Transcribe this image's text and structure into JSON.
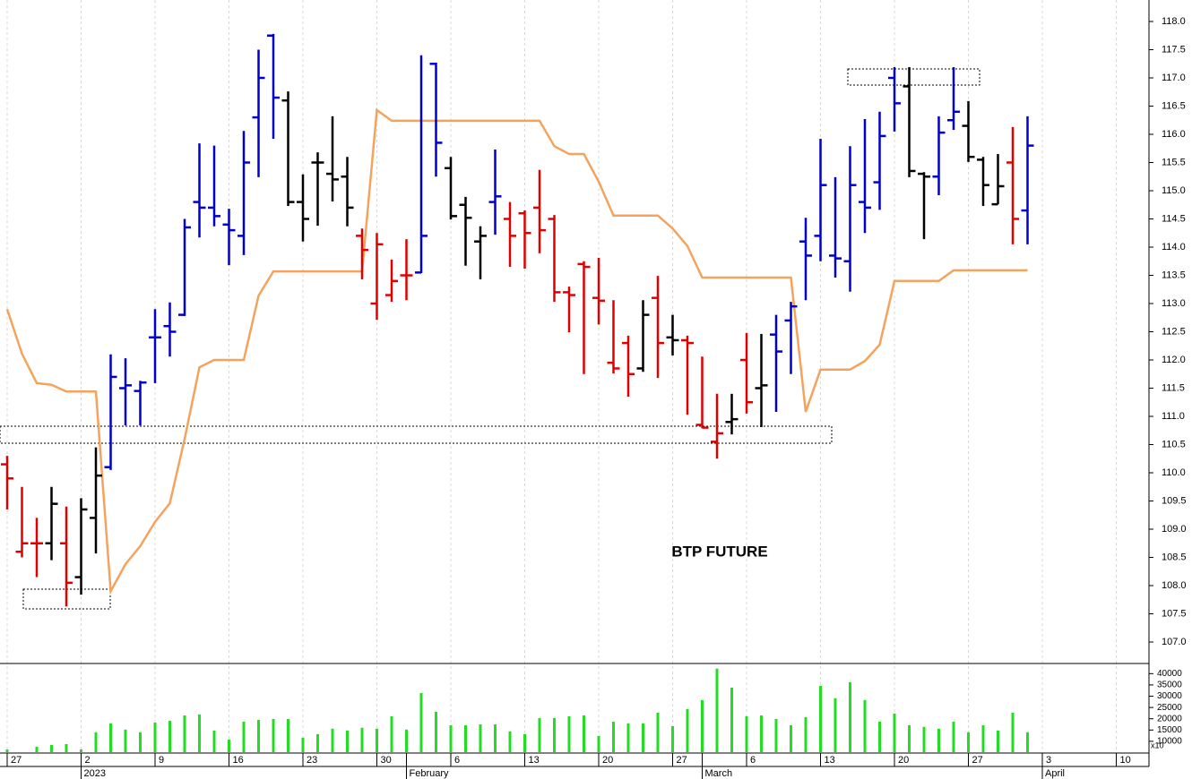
{
  "chart_data": {
    "type": "ohlc",
    "title": "BTP FUTURE",
    "categories": [
      "27",
      null,
      null,
      null,
      null,
      "2",
      null,
      null,
      null,
      null,
      "9",
      null,
      null,
      null,
      null,
      "16",
      null,
      null,
      null,
      null,
      "23",
      null,
      null,
      null,
      null,
      "30",
      null,
      null,
      null,
      null,
      "6",
      null,
      null,
      null,
      null,
      "13",
      null,
      null,
      null,
      null,
      "20",
      null,
      null,
      null,
      null,
      "27",
      null,
      null,
      null,
      null,
      "6",
      null,
      null,
      null,
      null,
      "13",
      null,
      null,
      null,
      null,
      "20",
      null,
      null,
      null,
      null,
      "27",
      null,
      null,
      null,
      null,
      "3",
      null,
      null,
      null,
      null,
      "10",
      null
    ],
    "month_categories": [
      null,
      null,
      null,
      null,
      null,
      "2023",
      null,
      null,
      null,
      null,
      null,
      null,
      null,
      null,
      null,
      null,
      null,
      null,
      null,
      null,
      null,
      null,
      null,
      null,
      null,
      null,
      null,
      "February",
      null,
      null,
      null,
      null,
      null,
      null,
      null,
      null,
      null,
      null,
      null,
      null,
      null,
      null,
      null,
      null,
      null,
      null,
      null,
      "March",
      null,
      null,
      null,
      null,
      null,
      null,
      null,
      null,
      null,
      null,
      null,
      null,
      null,
      null,
      null,
      null,
      null,
      null,
      null,
      null,
      null,
      null,
      "April",
      null,
      null,
      null,
      null,
      null,
      null
    ],
    "open": [
      110.15,
      108.6,
      108.75,
      108.75,
      108.75,
      108.15,
      109.2,
      110.1,
      111.5,
      111.45,
      112.4,
      112.6,
      112.8,
      114.8,
      114.7,
      114.4,
      114.2,
      116.3,
      117.75,
      116.6,
      114.8,
      115.5,
      115.3,
      115.25,
      114.2,
      113.0,
      113.15,
      113.5,
      113.55,
      117.25,
      115.4,
      114.75,
      114.1,
      114.8,
      114.5,
      114.6,
      114.7,
      114.5,
      113.2,
      113.7,
      113.1,
      111.95,
      112.3,
      111.85,
      113.1,
      112.4,
      112.35,
      110.85,
      110.55,
      110.9,
      112.0,
      111.5,
      112.45,
      112.7,
      114.1,
      114.2,
      113.85,
      113.75,
      114.8,
      115.15,
      117.0,
      116.85,
      115.3,
      115.25,
      116.25,
      116.15,
      115.55,
      114.76,
      115.5,
      114.65,
      null,
      null,
      null,
      null,
      null,
      null,
      null
    ],
    "high": [
      110.3,
      109.75,
      109.2,
      109.75,
      109.4,
      109.55,
      110.45,
      112.1,
      112.03,
      111.63,
      112.9,
      113.02,
      114.5,
      115.84,
      115.8,
      114.68,
      116.06,
      117.5,
      117.78,
      116.76,
      115.29,
      115.68,
      116.32,
      115.6,
      114.33,
      114.25,
      113.78,
      114.14,
      117.4,
      117.27,
      115.6,
      114.89,
      114.37,
      115.73,
      114.8,
      114.65,
      115.37,
      114.57,
      113.3,
      113.75,
      113.81,
      113.06,
      112.43,
      113.06,
      113.49,
      112.8,
      112.43,
      112.06,
      111.4,
      111.4,
      112.48,
      112.46,
      112.8,
      113.03,
      114.52,
      115.92,
      115.24,
      115.79,
      116.27,
      116.4,
      117.19,
      117.19,
      115.33,
      116.32,
      117.19,
      116.59,
      115.6,
      115.65,
      116.13,
      116.32,
      null,
      null,
      null,
      null,
      null,
      null,
      null
    ],
    "low": [
      109.35,
      108.5,
      108.15,
      108.45,
      107.63,
      107.84,
      108.57,
      110.05,
      110.84,
      110.84,
      111.59,
      112.06,
      112.78,
      114.17,
      114.37,
      113.68,
      113.86,
      115.24,
      115.92,
      114.73,
      114.1,
      114.38,
      114.81,
      114.37,
      113.43,
      112.71,
      113.03,
      113.06,
      113.54,
      115.25,
      114.49,
      113.67,
      113.43,
      114.22,
      113.65,
      113.62,
      113.89,
      113.03,
      112.49,
      111.75,
      112.63,
      111.76,
      111.35,
      111.79,
      111.68,
      112.08,
      111.03,
      110.79,
      110.25,
      110.68,
      111.05,
      110.81,
      111.08,
      111.75,
      113.06,
      113.75,
      113.46,
      113.21,
      114.25,
      114.66,
      116.05,
      115.24,
      114.14,
      114.92,
      116.08,
      115.51,
      114.73,
      114.76,
      114.05,
      114.05,
      null,
      null,
      null,
      null,
      null,
      null,
      null
    ],
    "close": [
      109.9,
      108.75,
      108.75,
      109.45,
      108.05,
      109.35,
      109.95,
      111.7,
      111.55,
      111.6,
      112.4,
      112.5,
      114.35,
      114.7,
      114.55,
      114.3,
      115.5,
      117.0,
      116.65,
      114.8,
      114.5,
      115.5,
      115.2,
      114.7,
      113.95,
      114.05,
      113.4,
      113.5,
      114.2,
      115.85,
      114.55,
      114.52,
      114.2,
      114.9,
      114.2,
      114.25,
      114.3,
      113.2,
      113.15,
      113.65,
      113.05,
      111.85,
      111.75,
      112.8,
      112.3,
      112.35,
      112.3,
      110.8,
      110.7,
      110.95,
      111.25,
      111.55,
      112.15,
      112.95,
      113.85,
      115.1,
      113.8,
      115.1,
      114.7,
      115.97,
      116.55,
      115.35,
      115.25,
      116.03,
      116.4,
      115.6,
      115.1,
      115.08,
      114.5,
      115.8,
      null,
      null,
      null,
      null,
      null,
      null,
      null
    ],
    "bar_colors": [
      "#e00000",
      "#e00000",
      "#e00000",
      "#000000",
      "#e00000",
      "#000000",
      "#000000",
      "#0000cc",
      "#0000cc",
      "#0000cc",
      "#0000cc",
      "#0000cc",
      "#0000cc",
      "#0000cc",
      "#0000cc",
      "#0000cc",
      "#0000cc",
      "#0000cc",
      "#0000cc",
      "#000000",
      "#000000",
      "#000000",
      "#000000",
      "#000000",
      "#e00000",
      "#e00000",
      "#e00000",
      "#e00000",
      "#0000cc",
      "#0000cc",
      "#000000",
      "#000000",
      "#000000",
      "#0000cc",
      "#e00000",
      "#e00000",
      "#e00000",
      "#e00000",
      "#e00000",
      "#e00000",
      "#e00000",
      "#e00000",
      "#e00000",
      "#000000",
      "#e00000",
      "#000000",
      "#e00000",
      "#e00000",
      "#e00000",
      "#000000",
      "#e00000",
      "#000000",
      "#0000cc",
      "#0000cc",
      "#0000cc",
      "#0000cc",
      "#0000cc",
      "#0000cc",
      "#0000cc",
      "#0000cc",
      "#0000cc",
      "#000000",
      "#000000",
      "#0000cc",
      "#0000cc",
      "#000000",
      "#000000",
      "#000000",
      "#e00000",
      "#0000cc",
      null,
      null,
      null,
      null,
      null,
      null,
      null
    ],
    "overlay": {
      "color": "#f5a35c",
      "values": [
        112.9,
        112.11,
        111.59,
        111.56,
        111.44,
        111.44,
        111.44,
        107.9,
        108.38,
        108.7,
        109.13,
        109.46,
        110.6,
        111.87,
        112.0,
        112.0,
        112.0,
        113.14,
        113.57,
        113.57,
        113.57,
        113.57,
        113.57,
        113.57,
        113.57,
        116.43,
        116.24,
        116.24,
        116.24,
        116.24,
        116.24,
        116.24,
        116.24,
        116.24,
        116.24,
        116.24,
        116.24,
        115.79,
        115.65,
        115.65,
        115.16,
        114.56,
        114.56,
        114.56,
        114.56,
        114.33,
        114.02,
        113.46,
        113.46,
        113.46,
        113.46,
        113.46,
        113.46,
        113.46,
        111.08,
        111.83,
        111.83,
        111.83,
        111.98,
        112.27,
        113.4,
        113.4,
        113.4,
        113.4,
        113.59,
        113.59,
        113.59,
        113.59,
        113.59,
        113.59,
        null,
        null,
        null,
        null,
        null,
        null,
        null
      ]
    },
    "ylim": [
      106.635,
      118.381
    ],
    "yticks": [
      {
        "value": 107,
        "label": "107.0"
      },
      {
        "value": 107.5,
        "label": "107.5"
      },
      {
        "value": 108,
        "label": "108.0"
      },
      {
        "value": 108.5,
        "label": "108.5"
      },
      {
        "value": 109,
        "label": "109.0"
      },
      {
        "value": 109.5,
        "label": "109.5"
      },
      {
        "value": 110,
        "label": "110.0"
      },
      {
        "value": 110.5,
        "label": "110.5"
      },
      {
        "value": 111,
        "label": "111.0"
      },
      {
        "value": 111.5,
        "label": "111.5"
      },
      {
        "value": 112,
        "label": "112.0"
      },
      {
        "value": 112.5,
        "label": "112.5"
      },
      {
        "value": 113,
        "label": "113.0"
      },
      {
        "value": 113.5,
        "label": "113.5"
      },
      {
        "value": 114,
        "label": "114.0"
      },
      {
        "value": 114.5,
        "label": "114.5"
      },
      {
        "value": 115,
        "label": "115.0"
      },
      {
        "value": 115.5,
        "label": "115.5"
      },
      {
        "value": 116,
        "label": "116.0"
      },
      {
        "value": 116.5,
        "label": "116.5"
      },
      {
        "value": 117,
        "label": "117.0"
      },
      {
        "value": 117.5,
        "label": "117.5"
      },
      {
        "value": 118,
        "label": "118.0"
      }
    ],
    "grid": true,
    "volume": {
      "type": "bar",
      "color": "#22dd22",
      "note": "x10",
      "values": [
        6400,
        null,
        7600,
        8400,
        8800,
        6400,
        14000,
        17900,
        15200,
        14000,
        18300,
        19100,
        21500,
        21900,
        14800,
        10800,
        18700,
        19500,
        19900,
        19900,
        11600,
        13200,
        15600,
        14800,
        16000,
        15600,
        21100,
        15200,
        31400,
        23100,
        17100,
        17100,
        17500,
        17500,
        14400,
        13200,
        20300,
        20300,
        21100,
        21500,
        12400,
        18700,
        17900,
        17900,
        22700,
        16700,
        24300,
        28300,
        42200,
        33800,
        21100,
        21500,
        19900,
        17100,
        20700,
        34600,
        29100,
        36200,
        28300,
        18700,
        22300,
        17100,
        16400,
        15600,
        18700,
        14000,
        17100,
        14800,
        22700,
        14000,
        null,
        null,
        null,
        null,
        null,
        null,
        null
      ],
      "ylim": [
        5200,
        44100
      ],
      "yticks": [
        10000,
        15000,
        20000,
        25000,
        30000,
        35000,
        40000
      ]
    }
  }
}
